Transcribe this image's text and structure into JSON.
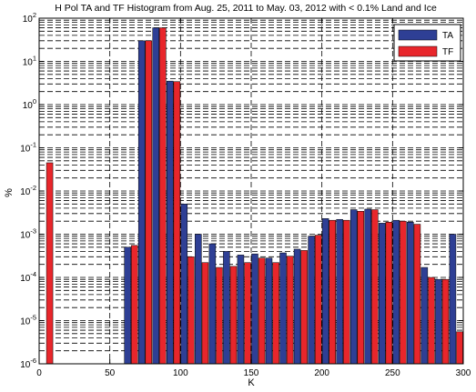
{
  "chart_data": {
    "type": "bar",
    "title": "H Pol TA and TF Histogram from Aug. 25, 2011 to May. 03, 2012 with < 0.1% Land and Ice",
    "xlabel": "K",
    "ylabel": "%",
    "xlim": [
      0,
      300
    ],
    "ylim": [
      1e-06,
      100
    ],
    "yscale": "log",
    "grid": true,
    "legend_position": "top-right",
    "xticks": [
      {
        "value": 0,
        "label": "0"
      },
      {
        "value": 50,
        "label": "50"
      },
      {
        "value": 100,
        "label": "100"
      },
      {
        "value": 150,
        "label": "150"
      },
      {
        "value": 200,
        "label": "200"
      },
      {
        "value": 250,
        "label": "250"
      },
      {
        "value": 300,
        "label": "300"
      }
    ],
    "yticks": [
      {
        "value": 1e-06,
        "base": "10",
        "exp": "-6"
      },
      {
        "value": 1e-05,
        "base": "10",
        "exp": "-5"
      },
      {
        "value": 0.0001,
        "base": "10",
        "exp": "-4"
      },
      {
        "value": 0.001,
        "base": "10",
        "exp": "-3"
      },
      {
        "value": 0.01,
        "base": "10",
        "exp": "-2"
      },
      {
        "value": 0.1,
        "base": "10",
        "exp": "-1"
      },
      {
        "value": 1,
        "base": "10",
        "exp": "0"
      },
      {
        "value": 10,
        "base": "10",
        "exp": "1"
      },
      {
        "value": 100,
        "base": "10",
        "exp": "2"
      }
    ],
    "bin_width": 10,
    "bins": [
      5,
      15,
      25,
      35,
      45,
      55,
      65,
      75,
      85,
      95,
      105,
      115,
      125,
      135,
      145,
      155,
      165,
      175,
      185,
      195,
      205,
      215,
      225,
      235,
      245,
      255,
      265,
      275,
      285,
      295
    ],
    "series": [
      {
        "name": "TA",
        "color": "#2e3f95",
        "values": [
          null,
          null,
          null,
          null,
          null,
          null,
          0.0005,
          30,
          60,
          3.5,
          0.005,
          0.001,
          0.0006,
          0.0004,
          0.00033,
          0.00035,
          0.00028,
          0.00037,
          0.00045,
          0.0009,
          0.0023,
          0.0022,
          0.0037,
          0.0038,
          0.0018,
          0.0021,
          0.0019,
          0.00017,
          9e-05,
          0.001
        ]
      },
      {
        "name": "TF",
        "color": "#e8262b",
        "values": [
          0.045,
          null,
          null,
          null,
          null,
          null,
          0.00055,
          30,
          60,
          3.4,
          0.0003,
          0.00022,
          0.00017,
          0.00018,
          0.00022,
          0.00028,
          0.00022,
          0.00031,
          0.00042,
          0.00095,
          0.0021,
          0.0021,
          0.0034,
          0.0037,
          0.0019,
          0.002,
          0.0017,
          0.0001,
          9e-05,
          5.5e-06
        ]
      }
    ]
  }
}
